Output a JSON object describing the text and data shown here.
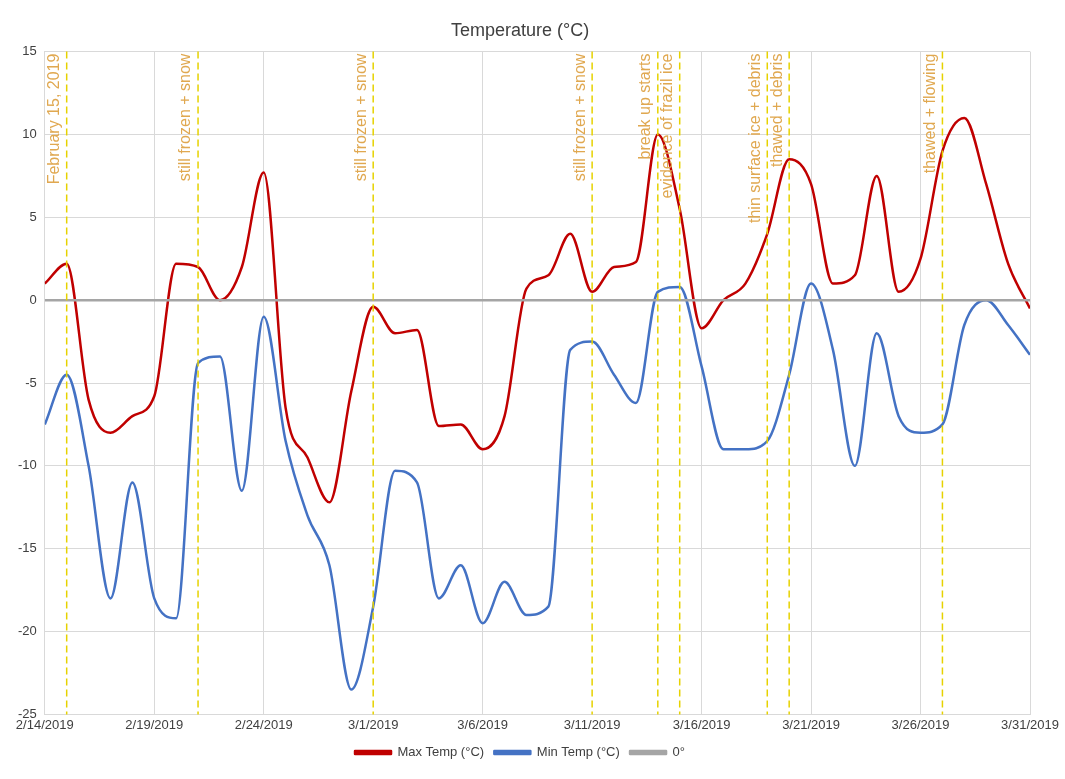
{
  "chart_data": {
    "type": "line",
    "title": "Temperature (°C)",
    "x": [
      "2019-02-14",
      "2019-02-15",
      "2019-02-16",
      "2019-02-17",
      "2019-02-18",
      "2019-02-19",
      "2019-02-20",
      "2019-02-21",
      "2019-02-22",
      "2019-02-23",
      "2019-02-24",
      "2019-02-25",
      "2019-02-26",
      "2019-02-27",
      "2019-02-28",
      "2019-03-01",
      "2019-03-02",
      "2019-03-03",
      "2019-03-04",
      "2019-03-05",
      "2019-03-06",
      "2019-03-07",
      "2019-03-08",
      "2019-03-09",
      "2019-03-10",
      "2019-03-11",
      "2019-03-12",
      "2019-03-13",
      "2019-03-14",
      "2019-03-15",
      "2019-03-16",
      "2019-03-17",
      "2019-03-18",
      "2019-03-19",
      "2019-03-20",
      "2019-03-21",
      "2019-03-22",
      "2019-03-23",
      "2019-03-24",
      "2019-03-25",
      "2019-03-26",
      "2019-03-27",
      "2019-03-28",
      "2019-03-29",
      "2019-03-30",
      "2019-03-31"
    ],
    "series": [
      {
        "name": "Max Temp (°C)",
        "color": "#c00000",
        "values": [
          1.0,
          2.2,
          -6,
          -8,
          -7,
          -5.8,
          2.2,
          2.0,
          0,
          2.0,
          7.7,
          -6.5,
          -9.5,
          -12.2,
          -5.5,
          -0.4,
          -2.0,
          -1.8,
          -7.6,
          -7.5,
          -9.0,
          -7,
          0.7,
          1.5,
          4.0,
          0.5,
          2.0,
          2.3,
          10.0,
          5.5,
          -1.7,
          0,
          1.0,
          4.0,
          8.5,
          7.0,
          1.0,
          1.5,
          7.5,
          0.5,
          2.5,
          9.0,
          11.0,
          7,
          2.2,
          -0.5
        ]
      },
      {
        "name": "Min Temp (°C)",
        "color": "#4472c4",
        "values": [
          -7.5,
          -4.5,
          -10,
          -18,
          -11,
          -18,
          -19.2,
          -3.8,
          -3.4,
          -11.5,
          -1,
          -8.5,
          -13,
          -16,
          -23.5,
          -18.5,
          -10.3,
          -11,
          -18,
          -16,
          -19.5,
          -17,
          -19,
          -18.5,
          -3,
          -2.5,
          -4.5,
          -6.2,
          0.5,
          0.8,
          -4,
          -9,
          -9,
          -8.5,
          -4.5,
          1.0,
          -3,
          -10,
          -2,
          -7,
          -8,
          -7.5,
          -1.5,
          0,
          -1.5,
          -3.3
        ]
      },
      {
        "name": "0°",
        "color": "#a5a5a5",
        "values": [
          0,
          0,
          0,
          0,
          0,
          0,
          0,
          0,
          0,
          0,
          0,
          0,
          0,
          0,
          0,
          0,
          0,
          0,
          0,
          0,
          0,
          0,
          0,
          0,
          0,
          0,
          0,
          0,
          0,
          0,
          0,
          0,
          0,
          0,
          0,
          0,
          0,
          0,
          0,
          0,
          0,
          0,
          0,
          0,
          0,
          0
        ]
      }
    ],
    "xlim": [
      "2019-02-14",
      "2019-03-31"
    ],
    "xticks": [
      {
        "value": "2019-02-14",
        "label": "2/14/2019"
      },
      {
        "value": "2019-02-19",
        "label": "2/19/2019"
      },
      {
        "value": "2019-02-24",
        "label": "2/24/2019"
      },
      {
        "value": "2019-03-01",
        "label": "3/1/2019"
      },
      {
        "value": "2019-03-06",
        "label": "3/6/2019"
      },
      {
        "value": "2019-03-11",
        "label": "3/11/2019"
      },
      {
        "value": "2019-03-16",
        "label": "3/16/2019"
      },
      {
        "value": "2019-03-21",
        "label": "3/21/2019"
      },
      {
        "value": "2019-03-26",
        "label": "3/26/2019"
      },
      {
        "value": "2019-03-31",
        "label": "3/31/2019"
      }
    ],
    "ylim": [
      -25,
      15
    ],
    "yticks": [
      -25,
      -20,
      -15,
      -10,
      -5,
      0,
      5,
      10,
      15
    ],
    "ref_lines": [
      {
        "axis": "x",
        "value": "2019-02-15",
        "label": "February 15, 2019",
        "color": "#e6d200",
        "line_style": "dashed"
      },
      {
        "axis": "x",
        "value": "2019-02-21",
        "label": "still frozen + snow",
        "color": "#e6d200",
        "line_style": "dashed"
      },
      {
        "axis": "x",
        "value": "2019-03-01",
        "label": "still frozen + snow",
        "color": "#e6d200",
        "line_style": "dashed"
      },
      {
        "axis": "x",
        "value": "2019-03-11",
        "label": "still frozen + snow",
        "color": "#e6d200",
        "line_style": "dashed"
      },
      {
        "axis": "x",
        "value": "2019-03-14",
        "label": "break up starts",
        "color": "#e6d200",
        "line_style": "dashed"
      },
      {
        "axis": "x",
        "value": "2019-03-15",
        "label": "evidence of frazil ice",
        "color": "#e6d200",
        "line_style": "dashed"
      },
      {
        "axis": "x",
        "value": "2019-03-19",
        "label": "thin surface ice + debris",
        "color": "#e6d200",
        "line_style": "dashed"
      },
      {
        "axis": "x",
        "value": "2019-03-20",
        "label": "thawed + debris",
        "color": "#e6d200",
        "line_style": "dashed"
      },
      {
        "axis": "x",
        "value": "2019-03-27",
        "label": "thawed + flowing",
        "color": "#e6d200",
        "line_style": "dashed"
      }
    ],
    "grid": true,
    "legend": "bottom",
    "marker": "none",
    "line_style": "solid"
  }
}
